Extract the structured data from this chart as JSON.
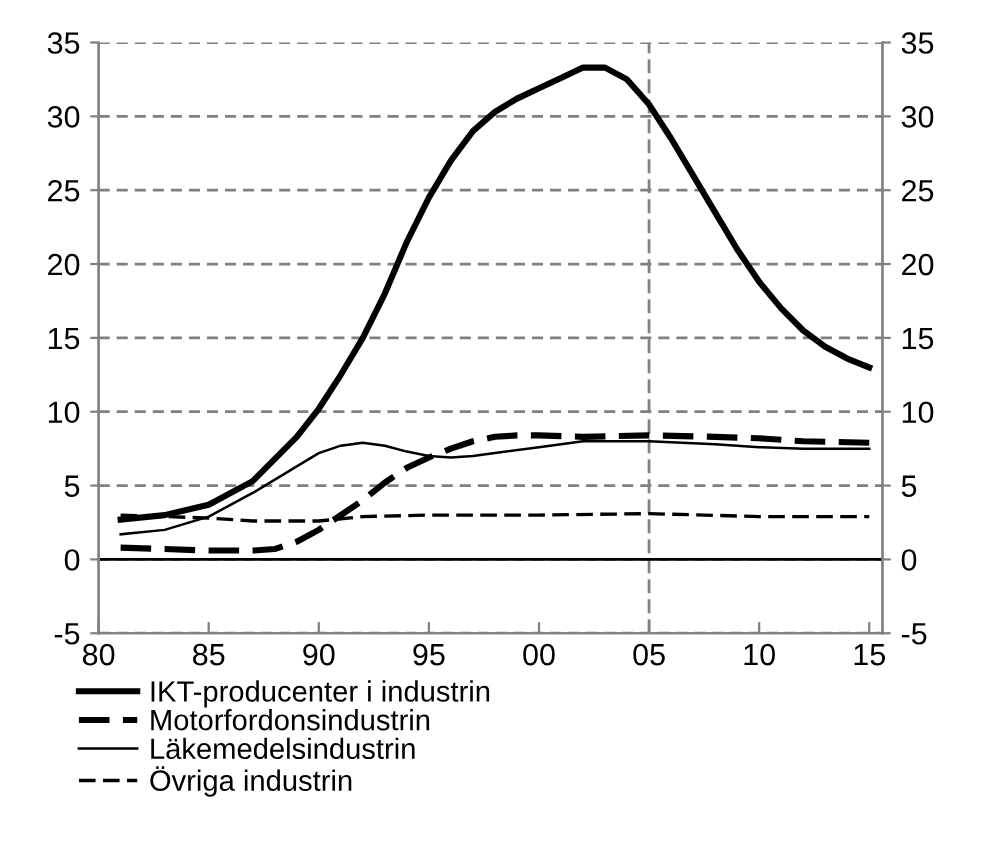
{
  "chart_data": {
    "type": "line",
    "xlim": [
      1980,
      2015.6
    ],
    "xticks": [
      {
        "value": 1980,
        "label": "80"
      },
      {
        "value": 1985,
        "label": "85"
      },
      {
        "value": 1990,
        "label": "90"
      },
      {
        "value": 1995,
        "label": "95"
      },
      {
        "value": 2000,
        "label": "00"
      },
      {
        "value": 2005,
        "label": "05"
      },
      {
        "value": 2010,
        "label": "10"
      },
      {
        "value": 2015,
        "label": "15"
      }
    ],
    "ylim": [
      -5,
      35
    ],
    "yticks": [
      -5,
      0,
      5,
      10,
      15,
      20,
      25,
      30,
      35
    ],
    "y2lim": [
      -5,
      35
    ],
    "y2ticks": [
      -5,
      0,
      5,
      10,
      15,
      20,
      25,
      30,
      35
    ],
    "grid": "y",
    "legend": "bottom",
    "marker": "none",
    "ref_lines": [
      {
        "axis": "x",
        "value": 2005,
        "color": "#808080",
        "line_style": "dashed"
      },
      {
        "axis": "y",
        "value": 0,
        "color": "#000000",
        "line_style": "solid"
      }
    ],
    "series": [
      {
        "name": "IKT-producenter i industrin",
        "color": "#000000",
        "line_style": "solid",
        "x": [
          1981,
          1983,
          1985,
          1987,
          1989,
          1990,
          1991,
          1992,
          1993,
          1994,
          1995,
          1996,
          1997,
          1998,
          1999,
          2000,
          2001,
          2002,
          2003,
          2004,
          2005,
          2006,
          2007,
          2008,
          2009,
          2010,
          2011,
          2012,
          2013,
          2014,
          2015
        ],
        "values": [
          2.7,
          3.0,
          3.7,
          5.3,
          8.3,
          10.2,
          12.5,
          15,
          18,
          21.5,
          24.5,
          27,
          29,
          30.3,
          31.2,
          31.9,
          32.6,
          33.3,
          33.3,
          32.5,
          30.8,
          28.5,
          26,
          23.5,
          21,
          18.8,
          17,
          15.5,
          14.4,
          13.6,
          13.0
        ]
      },
      {
        "name": "Motorfordonsindustrin",
        "color": "#000000",
        "line_style": "dashed",
        "x": [
          1981,
          1983,
          1985,
          1987,
          1988,
          1989,
          1990,
          1991,
          1992,
          1993,
          1994,
          1995,
          1996,
          1997,
          1998,
          1999,
          2000,
          2002,
          2005,
          2008,
          2010,
          2012,
          2015
        ],
        "values": [
          0.8,
          0.7,
          0.6,
          0.6,
          0.7,
          1.2,
          2.0,
          3.0,
          4.0,
          5.2,
          6.2,
          6.9,
          7.5,
          8.0,
          8.3,
          8.4,
          8.4,
          8.3,
          8.4,
          8.3,
          8.2,
          8.0,
          7.9
        ]
      },
      {
        "name": "Läkemedelsindustrin",
        "color": "#000000",
        "line_style": "solid",
        "x": [
          1981,
          1983,
          1985,
          1987,
          1989,
          1990,
          1991,
          1992,
          1993,
          1994,
          1995,
          1996,
          1997,
          1998,
          2000,
          2002,
          2005,
          2008,
          2010,
          2012,
          2015
        ],
        "values": [
          1.7,
          2.0,
          2.9,
          4.5,
          6.3,
          7.2,
          7.7,
          7.9,
          7.7,
          7.3,
          7.0,
          6.9,
          7.0,
          7.2,
          7.6,
          8.0,
          8.0,
          7.8,
          7.6,
          7.5,
          7.5
        ]
      },
      {
        "name": "Övriga industrin",
        "color": "#000000",
        "line_style": "dashed",
        "x": [
          1981,
          1983,
          1985,
          1987,
          1990,
          1992,
          1995,
          2000,
          2005,
          2010,
          2015
        ],
        "values": [
          3.0,
          2.9,
          2.8,
          2.6,
          2.6,
          2.9,
          3.0,
          3.0,
          3.1,
          2.9,
          2.9
        ]
      }
    ]
  }
}
